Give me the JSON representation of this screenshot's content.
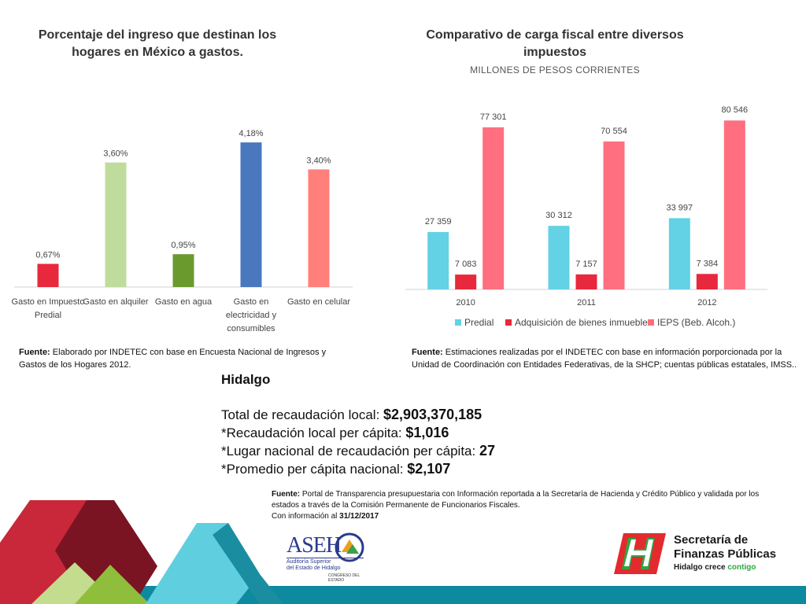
{
  "chart_data": [
    {
      "type": "bar",
      "title": "Porcentaje del ingreso que destinan los hogares en México a gastos.",
      "categories": [
        "Gasto en Impuesto Predial",
        "Gasto en alquiler",
        "Gasto en agua",
        "Gasto en electricidad y consumibles",
        "Gasto en celular"
      ],
      "category_lines": [
        [
          "Gasto en Impuesto",
          "Predial"
        ],
        [
          "Gasto en alquiler"
        ],
        [
          "Gasto en agua"
        ],
        [
          "Gasto en",
          "electricidad y",
          "consumibles"
        ],
        [
          "Gasto en celular"
        ]
      ],
      "values": [
        0.67,
        3.6,
        0.95,
        4.18,
        3.4
      ],
      "value_labels": [
        "0,67%",
        "3,60%",
        "0,95%",
        "4,18%",
        "3,40%"
      ],
      "colors": [
        "#e8283c",
        "#bfdc9c",
        "#6a9a2e",
        "#4a78bf",
        "#ff7f7a"
      ],
      "ylim": [
        0,
        5
      ],
      "grid": false,
      "legend": "none",
      "source_label": "Fuente:",
      "source_text": "Elaborado por INDETEC con base en Encuesta Nacional de Ingresos y Gastos de los Hogares 2012."
    },
    {
      "type": "bar",
      "title": "Comparativo de carga fiscal entre diversos impuestos",
      "subtitle": "MILLONES DE PESOS CORRIENTES",
      "categories": [
        "2010",
        "2011",
        "2012"
      ],
      "series": [
        {
          "name": "Predial",
          "values": [
            27359,
            30312,
            33997
          ],
          "labels": [
            "27 359",
            "30 312",
            "33 997"
          ],
          "color": "#62d2e4"
        },
        {
          "name": "Adquisición de bienes inmuebles",
          "values": [
            7083,
            7157,
            7384
          ],
          "labels": [
            "7 083",
            "7 157",
            "7 384"
          ],
          "color": "#e8283c"
        },
        {
          "name": "IEPS (Beb. Alcoh.)",
          "values": [
            77301,
            70554,
            80546
          ],
          "labels": [
            "77 301",
            "70 554",
            "80 546"
          ],
          "color": "#ff6f7f"
        }
      ],
      "ylim": [
        0,
        90000
      ],
      "grid": false,
      "legend": "bottom",
      "source_label": "Fuente:",
      "source_text": "Estimaciones realizadas por el INDETEC con base en información porporcionada por la Unidad de Coordinación con Entidades Federativas, de la SHCP; cuentas públicas estatales, IMSS.."
    }
  ],
  "summary": {
    "region": "Hidalgo",
    "lines": [
      {
        "label": "Total de recaudación local: ",
        "value": "$2,903,370,185"
      },
      {
        "label": "*Recaudación local per cápita: ",
        "value": "$1,016"
      },
      {
        "label": "*Lugar nacional de recaudación per cápita: ",
        "value": "27"
      },
      {
        "label": "*Promedio per cápita nacional: ",
        "value": "$2,107"
      }
    ]
  },
  "footer_source": {
    "label": "Fuente:",
    "text": "Portal de Transparencia presupuestaria con Información reportada a la Secretaría de Hacienda y Crédito Público y validada por los estados a través de la Comisión Permanente de Funcionarios Fiscales.",
    "date_prefix": "Con información al ",
    "date": "31/12/2017"
  },
  "logos": {
    "aseh": {
      "text": "ASEH",
      "sub1": "Auditoría Superior",
      "sub2": "del Estado de Hidalgo",
      "sub3": "CONGRESO DEL ESTADO"
    },
    "sfp": {
      "line1": "Secretaría de",
      "line2": "Finanzas Públicas",
      "tagline_a": "Hidalgo crece ",
      "tagline_b": "contigo"
    }
  },
  "colors": {
    "deco_red": "#c8283a",
    "deco_dark_red": "#7a1422",
    "deco_green": "#8fbe3c",
    "deco_light_green": "#c3dc8e",
    "deco_cyan": "#5fcfe0",
    "deco_teal": "#1a8ea0",
    "sfp_red": "#e32a2e",
    "sfp_green": "#2da742"
  }
}
